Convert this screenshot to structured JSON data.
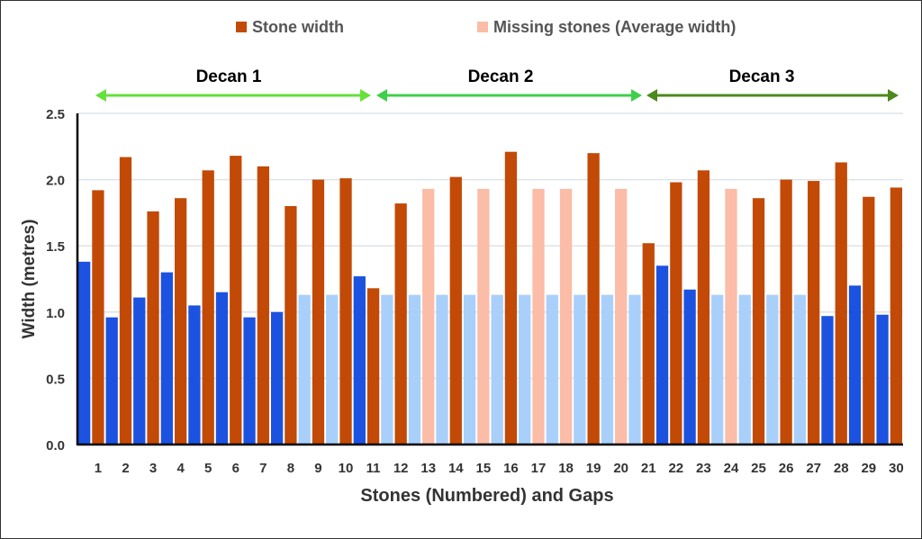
{
  "chart_data": {
    "type": "bar",
    "title": "",
    "xlabel": "Stones (Numbered) and Gaps",
    "ylabel": "Width (metres)",
    "ylim": [
      0,
      2.5
    ],
    "yticks": [
      "0.0",
      "0.5",
      "1.0",
      "1.5",
      "2.0",
      "2.5"
    ],
    "grid": true,
    "legend_placement": "top-center",
    "legend": [
      {
        "label": "Stone width",
        "color": "#c24a06"
      },
      {
        "label": "Missing stones (Average width)",
        "color": "#fbbca8"
      }
    ],
    "categories": [
      "1",
      "2",
      "3",
      "4",
      "5",
      "6",
      "7",
      "8",
      "9",
      "10",
      "11",
      "12",
      "13",
      "14",
      "15",
      "16",
      "17",
      "18",
      "19",
      "20",
      "21",
      "22",
      "23",
      "24",
      "25",
      "26",
      "27",
      "28",
      "29",
      "30"
    ],
    "stone_width": [
      1.92,
      2.17,
      1.76,
      1.86,
      2.07,
      2.18,
      2.1,
      1.8,
      2.0,
      2.01,
      1.18,
      1.82,
      1.93,
      2.02,
      1.93,
      2.21,
      1.93,
      1.93,
      2.2,
      1.93,
      1.52,
      1.98,
      2.07,
      1.93,
      1.86,
      2.0,
      1.99,
      2.13,
      1.87,
      1.94
    ],
    "stone_missing": [
      false,
      false,
      false,
      false,
      false,
      false,
      false,
      false,
      false,
      false,
      false,
      false,
      true,
      false,
      true,
      false,
      true,
      true,
      false,
      true,
      false,
      false,
      false,
      true,
      false,
      false,
      false,
      false,
      false,
      false
    ],
    "gap_width": [
      1.38,
      0.96,
      1.11,
      1.3,
      1.05,
      1.15,
      0.96,
      1.0,
      1.13,
      1.13,
      1.27,
      1.13,
      1.13,
      1.13,
      1.13,
      1.13,
      1.13,
      1.13,
      1.13,
      1.13,
      1.13,
      1.35,
      1.17,
      1.13,
      1.13,
      1.13,
      1.13,
      0.97,
      1.2,
      0.98
    ],
    "gap_missing": [
      false,
      false,
      false,
      false,
      false,
      false,
      false,
      false,
      true,
      true,
      false,
      true,
      true,
      true,
      true,
      true,
      true,
      true,
      true,
      true,
      true,
      false,
      false,
      true,
      true,
      true,
      true,
      false,
      false,
      false
    ],
    "colors": {
      "stone": "#c24a06",
      "stone_missing": "#fbbca8",
      "gap": "#1c52e0",
      "gap_missing": "#a9d0fa",
      "axis": "#000000",
      "grid": "#dde3ea",
      "text": "#333333"
    },
    "annotations": [
      {
        "label": "Decan 1",
        "from": "1",
        "to": "11",
        "color": "#66e03a"
      },
      {
        "label": "Decan 2",
        "from": "12",
        "to": "21",
        "color": "#3ecf4a"
      },
      {
        "label": "Decan 3",
        "from": "21",
        "to": "30",
        "color": "#4c8a1c"
      }
    ]
  }
}
